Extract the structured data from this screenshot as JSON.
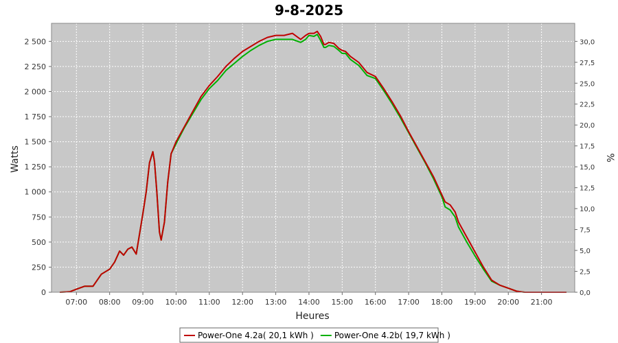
{
  "chart_data": {
    "type": "line",
    "title": "9-8-2025",
    "xlabel": "Heures",
    "ylabel": "Watts",
    "y2label": "%",
    "xlim": [
      6.25,
      22.0
    ],
    "ylim": [
      0,
      2680
    ],
    "y2lim": [
      0,
      32.16
    ],
    "x_ticks": [
      {
        "x": 7,
        "label": "07:00"
      },
      {
        "x": 8,
        "label": "08:00"
      },
      {
        "x": 9,
        "label": "09:00"
      },
      {
        "x": 10,
        "label": "10:00"
      },
      {
        "x": 11,
        "label": "11:00"
      },
      {
        "x": 12,
        "label": "12:00"
      },
      {
        "x": 13,
        "label": "13:00"
      },
      {
        "x": 14,
        "label": "14:00"
      },
      {
        "x": 15,
        "label": "15:00"
      },
      {
        "x": 16,
        "label": "16:00"
      },
      {
        "x": 17,
        "label": "17:00"
      },
      {
        "x": 18,
        "label": "18:00"
      },
      {
        "x": 19,
        "label": "19:00"
      },
      {
        "x": 20,
        "label": "20:00"
      },
      {
        "x": 21,
        "label": "21:00"
      }
    ],
    "y_ticks": [
      {
        "y": 0,
        "label": "0"
      },
      {
        "y": 250,
        "label": "250"
      },
      {
        "y": 500,
        "label": "500"
      },
      {
        "y": 750,
        "label": "750"
      },
      {
        "y": 1000,
        "label": "1 000"
      },
      {
        "y": 1250,
        "label": "1 250"
      },
      {
        "y": 1500,
        "label": "1 500"
      },
      {
        "y": 1750,
        "label": "1 750"
      },
      {
        "y": 2000,
        "label": "2 000"
      },
      {
        "y": 2250,
        "label": "2 250"
      },
      {
        "y": 2500,
        "label": "2 500"
      }
    ],
    "y2_ticks": [
      {
        "y": 0,
        "label": "0,0"
      },
      {
        "y": 2.5,
        "label": "2,5"
      },
      {
        "y": 5,
        "label": "5,0"
      },
      {
        "y": 7.5,
        "label": "7,5"
      },
      {
        "y": 10,
        "label": "10,0"
      },
      {
        "y": 12.5,
        "label": "12,5"
      },
      {
        "y": 15,
        "label": "15,0"
      },
      {
        "y": 17.5,
        "label": "17,5"
      },
      {
        "y": 20,
        "label": "20,0"
      },
      {
        "y": 22.5,
        "label": "22,5"
      },
      {
        "y": 25,
        "label": "25,0"
      },
      {
        "y": 27.5,
        "label": "27,5"
      },
      {
        "y": 30,
        "label": "30,0"
      }
    ],
    "grid": true,
    "legend_position": "bottom",
    "plot_background": "#c8c8c8",
    "series": [
      {
        "name": "Power-One 4.2a( 20,1 kWh )",
        "color": "#c00000",
        "x": [
          6.5,
          6.8,
          7.0,
          7.25,
          7.4,
          7.5,
          7.75,
          7.9,
          8.0,
          8.15,
          8.3,
          8.42,
          8.55,
          8.67,
          8.8,
          9.0,
          9.1,
          9.2,
          9.3,
          9.35,
          9.42,
          9.5,
          9.55,
          9.65,
          9.75,
          9.85,
          10.0,
          10.25,
          10.5,
          10.75,
          11.0,
          11.25,
          11.5,
          11.75,
          12.0,
          12.25,
          12.5,
          12.75,
          13.0,
          13.25,
          13.5,
          13.75,
          13.9,
          14.0,
          14.15,
          14.25,
          14.35,
          14.45,
          14.5,
          14.6,
          14.75,
          14.9,
          15.0,
          15.1,
          15.25,
          15.5,
          15.75,
          16.0,
          16.25,
          16.5,
          16.75,
          17.0,
          17.25,
          17.5,
          17.75,
          18.0,
          18.1,
          18.25,
          18.4,
          18.5,
          18.75,
          19.0,
          19.25,
          19.5,
          19.75,
          20.0,
          20.25,
          20.5,
          20.75,
          21.0,
          21.25,
          21.5,
          21.75
        ],
        "y": [
          0,
          5,
          30,
          60,
          60,
          60,
          180,
          210,
          230,
          300,
          410,
          370,
          430,
          450,
          380,
          780,
          1000,
          1290,
          1400,
          1300,
          1000,
          600,
          520,
          700,
          1100,
          1380,
          1500,
          1650,
          1800,
          1950,
          2060,
          2150,
          2250,
          2330,
          2400,
          2450,
          2500,
          2540,
          2560,
          2560,
          2580,
          2520,
          2560,
          2580,
          2580,
          2600,
          2550,
          2470,
          2470,
          2490,
          2480,
          2430,
          2410,
          2400,
          2350,
          2290,
          2190,
          2150,
          2030,
          1900,
          1760,
          1600,
          1450,
          1300,
          1150,
          970,
          900,
          870,
          800,
          700,
          550,
          400,
          250,
          120,
          70,
          40,
          10,
          0,
          0,
          0,
          0,
          0,
          0
        ]
      },
      {
        "name": "Power-One 4.2b( 19,7 kWh )",
        "color": "#00b000",
        "x": [
          6.5,
          6.8,
          7.0,
          7.25,
          7.4,
          7.5,
          7.75,
          7.9,
          8.0,
          8.15,
          8.3,
          8.42,
          8.55,
          8.67,
          8.8,
          9.0,
          9.1,
          9.2,
          9.3,
          9.35,
          9.42,
          9.5,
          9.55,
          9.65,
          9.75,
          9.85,
          10.0,
          10.25,
          10.5,
          10.75,
          11.0,
          11.25,
          11.5,
          11.75,
          12.0,
          12.25,
          12.5,
          12.75,
          13.0,
          13.25,
          13.5,
          13.75,
          13.9,
          14.0,
          14.15,
          14.25,
          14.35,
          14.45,
          14.5,
          14.6,
          14.75,
          14.9,
          15.0,
          15.1,
          15.25,
          15.5,
          15.75,
          16.0,
          16.25,
          16.5,
          16.75,
          17.0,
          17.25,
          17.5,
          17.75,
          18.0,
          18.1,
          18.25,
          18.4,
          18.5,
          18.75,
          19.0,
          19.25,
          19.5,
          19.75,
          20.0,
          20.25,
          20.5,
          20.75,
          21.0,
          21.25,
          21.5,
          21.75
        ],
        "y": [
          0,
          5,
          30,
          60,
          60,
          60,
          180,
          210,
          230,
          300,
          410,
          370,
          430,
          450,
          380,
          780,
          1000,
          1290,
          1400,
          1300,
          1000,
          600,
          520,
          700,
          1100,
          1380,
          1480,
          1640,
          1780,
          1920,
          2030,
          2110,
          2210,
          2280,
          2350,
          2410,
          2460,
          2500,
          2520,
          2520,
          2520,
          2490,
          2520,
          2560,
          2550,
          2570,
          2510,
          2440,
          2440,
          2460,
          2450,
          2410,
          2380,
          2380,
          2320,
          2260,
          2160,
          2130,
          2010,
          1880,
          1740,
          1590,
          1440,
          1290,
          1130,
          950,
          850,
          820,
          750,
          650,
          500,
          360,
          230,
          110,
          70,
          40,
          10,
          0,
          0,
          0,
          0,
          0,
          0
        ]
      }
    ]
  }
}
